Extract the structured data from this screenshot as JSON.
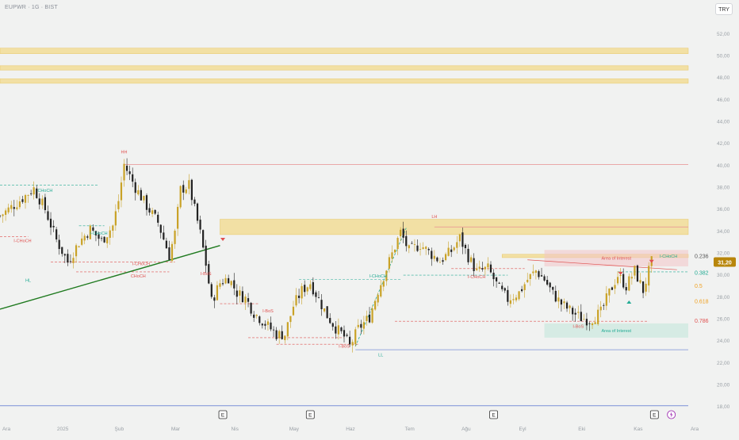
{
  "header": {
    "symbol_title": "EUPWR · 1G · BIST",
    "currency_button": "TRY"
  },
  "colors": {
    "background": "#f1f2f1",
    "bull_candle": "#c9a227",
    "bear_candle": "#222222",
    "teal": "#22ab94",
    "red": "#e0504f",
    "orange": "#f0a020",
    "zone_yellow": "#f2d98a",
    "zone_pink": "#f3c4c6",
    "zone_green": "#bfe6d8",
    "trendline": "#1f7a1f",
    "blue_line": "#7a8fd8"
  },
  "chart_data": {
    "type": "candlestick",
    "title": "EUPWR · 1G · BIST",
    "currency": "TRY",
    "last_price": 31.2,
    "last_price_label": "31,20",
    "ylim": [
      17.5,
      53.5
    ],
    "grid": false,
    "y_ticks": [
      "18,00",
      "20,00",
      "22,00",
      "24,00",
      "26,00",
      "28,00",
      "30,00",
      "32,00",
      "34,00",
      "36,00",
      "38,00",
      "40,00",
      "42,00",
      "44,00",
      "46,00",
      "48,00",
      "50,00",
      "52,00"
    ],
    "y_tick_values": [
      18,
      20,
      22,
      24,
      26,
      28,
      30,
      32,
      34,
      36,
      38,
      40,
      42,
      44,
      46,
      48,
      50,
      52
    ],
    "x_ticks": [
      "Ara",
      "2025",
      "Şub",
      "Mar",
      "Nis",
      "May",
      "Haz",
      "Tem",
      "Ağu",
      "Eyl",
      "Eki",
      "Kas",
      "Ara"
    ],
    "x_tick_days": [
      0,
      20,
      40,
      60,
      81,
      102,
      122,
      143,
      163,
      183,
      204,
      224,
      244
    ],
    "price_path": [
      [
        0,
        35.4
      ],
      [
        6,
        36.6
      ],
      [
        12,
        37.9
      ],
      [
        16,
        36.0
      ],
      [
        20,
        33.2
      ],
      [
        24,
        31.2
      ],
      [
        28,
        33.0
      ],
      [
        32,
        34.2
      ],
      [
        36,
        33.1
      ],
      [
        40,
        34.5
      ],
      [
        42,
        36.8
      ],
      [
        44,
        40.1
      ],
      [
        48,
        38.0
      ],
      [
        52,
        36.3
      ],
      [
        56,
        34.8
      ],
      [
        60,
        31.8
      ],
      [
        62,
        33.8
      ],
      [
        64,
        37.8
      ],
      [
        67,
        38.2
      ],
      [
        69,
        36.0
      ],
      [
        71,
        33.8
      ],
      [
        73,
        31.0
      ],
      [
        75,
        27.6
      ],
      [
        78,
        29.3
      ],
      [
        81,
        29.8
      ],
      [
        84,
        28.4
      ],
      [
        87,
        27.9
      ],
      [
        90,
        26.6
      ],
      [
        94,
        25.6
      ],
      [
        98,
        24.6
      ],
      [
        101,
        24.6
      ],
      [
        104,
        27.2
      ],
      [
        107,
        28.6
      ],
      [
        110,
        29.3
      ],
      [
        113,
        27.8
      ],
      [
        116,
        26.3
      ],
      [
        119,
        25.2
      ],
      [
        122,
        24.4
      ],
      [
        124,
        23.5
      ],
      [
        127,
        25.1
      ],
      [
        131,
        26.2
      ],
      [
        134,
        28.6
      ],
      [
        137,
        30.6
      ],
      [
        140,
        32.6
      ],
      [
        142,
        33.9
      ],
      [
        145,
        32.2
      ],
      [
        149,
        32.8
      ],
      [
        152,
        32.1
      ],
      [
        156,
        31.3
      ],
      [
        160,
        32.2
      ],
      [
        163,
        33.4
      ],
      [
        166,
        31.7
      ],
      [
        169,
        30.3
      ],
      [
        173,
        30.6
      ],
      [
        177,
        28.7
      ],
      [
        180,
        27.8
      ],
      [
        184,
        28.4
      ],
      [
        187,
        29.6
      ],
      [
        190,
        30.4
      ],
      [
        193,
        29.6
      ],
      [
        196,
        28.3
      ],
      [
        199,
        27.4
      ],
      [
        203,
        26.6
      ],
      [
        206,
        26.1
      ],
      [
        209,
        25.9
      ],
      [
        213,
        26.6
      ],
      [
        216,
        28.4
      ],
      [
        219,
        30.0
      ],
      [
        222,
        29.0
      ],
      [
        225,
        30.4
      ],
      [
        228,
        28.6
      ],
      [
        231,
        31.2
      ]
    ],
    "annotations": [
      {
        "text": "HH",
        "color": "red",
        "day": 44,
        "price": 41.1
      },
      {
        "text": "CHoCH",
        "color": "teal",
        "day": 16,
        "price": 37.6
      },
      {
        "text": "I-CHoCH",
        "color": "teal",
        "day": 35,
        "price": 33.7
      },
      {
        "text": "I-CHoCH",
        "color": "red",
        "day": 8,
        "price": 33.0
      },
      {
        "text": "HL",
        "color": "teal",
        "day": 10,
        "price": 29.4
      },
      {
        "text": "I-CHoCH",
        "color": "red",
        "day": 50,
        "price": 30.9
      },
      {
        "text": "CHoCH",
        "color": "red",
        "day": 49,
        "price": 29.8
      },
      {
        "text": "I-BoS",
        "color": "red",
        "day": 73,
        "price": 30.0
      },
      {
        "text": "I-BoS",
        "color": "red",
        "day": 95,
        "price": 26.6
      },
      {
        "text": "I-CHoCH",
        "color": "teal",
        "day": 134,
        "price": 29.8
      },
      {
        "text": "I-BoS",
        "color": "red",
        "day": 122,
        "price": 23.4
      },
      {
        "text": "LL",
        "color": "teal",
        "day": 135,
        "price": 22.6
      },
      {
        "text": "LH",
        "color": "red",
        "day": 154,
        "price": 35.2
      },
      {
        "text": "I-CHoCH",
        "color": "red",
        "day": 169,
        "price": 29.7
      },
      {
        "text": "I-BoS",
        "color": "red",
        "day": 205,
        "price": 25.2
      },
      {
        "text": "I-CHoCH",
        "color": "teal",
        "day": 237,
        "price": 31.6
      }
    ],
    "zones": [
      {
        "label": "",
        "color": "yellow",
        "d0": 0,
        "d1": 244,
        "p0": 50.2,
        "p1": 50.7
      },
      {
        "label": "",
        "color": "yellow",
        "d0": 0,
        "d1": 244,
        "p0": 48.7,
        "p1": 49.1
      },
      {
        "label": "",
        "color": "yellow",
        "d0": 0,
        "d1": 244,
        "p0": 47.5,
        "p1": 47.9
      },
      {
        "label": "",
        "color": "yellow",
        "d0": 78,
        "d1": 244,
        "p0": 33.7,
        "p1": 35.1
      },
      {
        "label": "",
        "color": "yellow",
        "d0": 178,
        "d1": 244,
        "p0": 31.6,
        "p1": 31.9
      },
      {
        "label": "Area of Interest",
        "color": "pink",
        "d0": 193,
        "d1": 244,
        "p0": 30.8,
        "p1": 32.3
      },
      {
        "label": "Area of Interest",
        "color": "green",
        "d0": 193,
        "d1": 244,
        "p0": 24.3,
        "p1": 25.6
      }
    ],
    "fib_levels": [
      {
        "label": "0.236",
        "color": "#555555",
        "price": 31.7
      },
      {
        "label": "0.382",
        "color": "#22ab94",
        "price": 30.2
      },
      {
        "label": "0.5",
        "color": "#f0a020",
        "price": 29.0
      },
      {
        "label": "0.618",
        "color": "#f0a020",
        "price": 27.6
      },
      {
        "label": "0.786",
        "color": "#e0504f",
        "price": 25.8
      }
    ],
    "events": [
      "E",
      "E",
      "E",
      "E"
    ],
    "event_days": [
      79,
      110,
      175,
      232
    ]
  }
}
